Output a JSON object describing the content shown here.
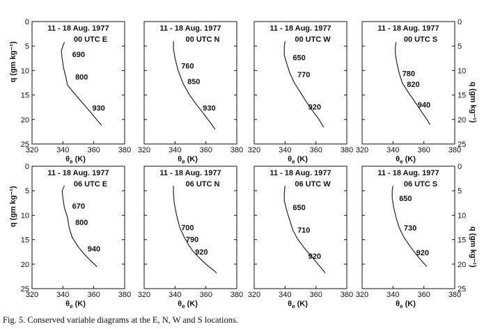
{
  "caption": "Fig. 5. Conserved variable diagrams at the E, N, W and S locations.",
  "axes": {
    "x_label_main": "θ",
    "x_label_sub": "e",
    "x_label_unit": " (K)",
    "y_label": "q (gm kg⁻¹)",
    "x_ticks": [
      "320",
      "340",
      "360",
      "380"
    ],
    "y_ticks": [
      "0",
      "5",
      "10",
      "15",
      "20",
      "25"
    ]
  },
  "chart_data": [
    {
      "type": "line",
      "title": "11 - 18 Aug. 1977",
      "station": "00 UTC  E",
      "xlim": [
        320,
        380
      ],
      "ylim": [
        0,
        25
      ],
      "y_inverted": true,
      "x": [
        341,
        340,
        339,
        339.5,
        340.5,
        342,
        343,
        347,
        351,
        356,
        361,
        365
      ],
      "y": [
        4.2,
        5.0,
        6.0,
        7.5,
        9.5,
        11.5,
        13.0,
        14.5,
        16.0,
        17.8,
        19.7,
        21.2
      ],
      "labels": [
        {
          "text": "690",
          "x": 346,
          "y": 6.7
        },
        {
          "text": "800",
          "x": 348,
          "y": 11.3
        },
        {
          "text": "930",
          "x": 359,
          "y": 17.6
        }
      ]
    },
    {
      "type": "line",
      "title": "11 - 18 Aug. 1977",
      "station": "00 UTC  N",
      "xlim": [
        320,
        380
      ],
      "ylim": [
        0,
        25
      ],
      "y_inverted": true,
      "x": [
        339,
        339,
        340,
        342,
        345,
        349,
        354,
        359,
        363,
        366
      ],
      "y": [
        4.0,
        5.5,
        7.5,
        10.0,
        12.5,
        14.8,
        17.0,
        19.0,
        20.7,
        22.0
      ],
      "labels": [
        {
          "text": "760",
          "x": 344,
          "y": 9.0
        },
        {
          "text": "850",
          "x": 348,
          "y": 12.2
        },
        {
          "text": "930",
          "x": 358,
          "y": 17.6
        }
      ]
    },
    {
      "type": "line",
      "title": "11 - 18 Aug. 1977",
      "station": "00 UTC  W",
      "xlim": [
        320,
        380
      ],
      "ylim": [
        0,
        25
      ],
      "y_inverted": true,
      "x": [
        340,
        339.5,
        339.5,
        341,
        343,
        346,
        350,
        354,
        358,
        362,
        365
      ],
      "y": [
        4.0,
        5.3,
        6.8,
        8.5,
        10.5,
        12.5,
        14.5,
        16.5,
        18.3,
        20.0,
        21.6
      ],
      "labels": [
        {
          "text": "650",
          "x": 345,
          "y": 7.3
        },
        {
          "text": "770",
          "x": 348,
          "y": 10.8
        },
        {
          "text": "920",
          "x": 355,
          "y": 17.4
        }
      ]
    },
    {
      "type": "line",
      "title": "11 - 18 Aug. 1977",
      "station": "00 UTC  S",
      "xlim": [
        320,
        380
      ],
      "ylim": [
        0,
        25
      ],
      "y_inverted": true,
      "x": [
        342,
        341.5,
        341.5,
        342.5,
        344,
        346,
        350,
        354,
        358,
        362,
        364
      ],
      "y": [
        4.2,
        5.2,
        6.5,
        8.5,
        10.5,
        12.5,
        14.5,
        16.3,
        18.2,
        20.0,
        21.0
      ],
      "labels": [
        {
          "text": "780",
          "x": 346,
          "y": 10.6
        },
        {
          "text": "820",
          "x": 349,
          "y": 12.8
        },
        {
          "text": "940",
          "x": 356,
          "y": 17.0
        }
      ]
    },
    {
      "type": "line",
      "title": "11 - 18 Aug. 1977",
      "station": "06 UTC  E",
      "xlim": [
        320,
        380
      ],
      "ylim": [
        0,
        25
      ],
      "y_inverted": true,
      "x": [
        341,
        339.5,
        340,
        341,
        343,
        344,
        346,
        350,
        354,
        358,
        362
      ],
      "y": [
        4.0,
        5.0,
        6.5,
        8.5,
        10.5,
        12.5,
        14.5,
        16.5,
        18.0,
        19.3,
        20.5
      ],
      "labels": [
        {
          "text": "670",
          "x": 346,
          "y": 8.1
        },
        {
          "text": "800",
          "x": 348,
          "y": 11.4
        },
        {
          "text": "940",
          "x": 356,
          "y": 16.8
        }
      ]
    },
    {
      "type": "line",
      "title": "11 - 18 Aug. 1977",
      "station": "06 UTC  N",
      "xlim": [
        320,
        380
      ],
      "ylim": [
        0,
        25
      ],
      "y_inverted": true,
      "x": [
        339,
        339,
        339.5,
        341,
        343,
        346,
        349,
        352,
        356,
        360,
        364,
        367
      ],
      "y": [
        4.0,
        5.5,
        7.5,
        10.0,
        12.5,
        14.5,
        16.2,
        17.5,
        18.8,
        20.0,
        21.0,
        21.8
      ],
      "labels": [
        {
          "text": "700",
          "x": 344,
          "y": 12.5
        },
        {
          "text": "790",
          "x": 347,
          "y": 14.9
        },
        {
          "text": "920",
          "x": 353,
          "y": 17.5
        }
      ]
    },
    {
      "type": "line",
      "title": "11 - 18 Aug. 1977",
      "station": "06 UTC  W",
      "xlim": [
        320,
        380
      ],
      "ylim": [
        0,
        25
      ],
      "y_inverted": true,
      "x": [
        340,
        339.5,
        339.5,
        341,
        343,
        345,
        348,
        352,
        356,
        360,
        364,
        366
      ],
      "y": [
        4.0,
        5.5,
        7.0,
        9.0,
        11.0,
        13.0,
        14.8,
        16.5,
        18.0,
        19.5,
        21.0,
        21.8
      ],
      "labels": [
        {
          "text": "650",
          "x": 345,
          "y": 8.4
        },
        {
          "text": "710",
          "x": 348,
          "y": 13.0
        },
        {
          "text": "920",
          "x": 355,
          "y": 18.3
        }
      ]
    },
    {
      "type": "line",
      "title": "11 - 18 Aug. 1977",
      "station": "06 UTC  S",
      "xlim": [
        320,
        380
      ],
      "ylim": [
        0,
        25
      ],
      "y_inverted": true,
      "x": [
        340,
        339.5,
        339.5,
        340.5,
        342,
        344,
        347,
        351,
        355,
        359,
        362
      ],
      "y": [
        4.0,
        5.0,
        6.5,
        8.5,
        10.5,
        12.5,
        14.5,
        16.3,
        18.0,
        19.5,
        20.5
      ],
      "labels": [
        {
          "text": "650",
          "x": 344,
          "y": 6.5
        },
        {
          "text": "730",
          "x": 347,
          "y": 12.6
        },
        {
          "text": "920",
          "x": 355,
          "y": 17.6
        }
      ]
    }
  ]
}
